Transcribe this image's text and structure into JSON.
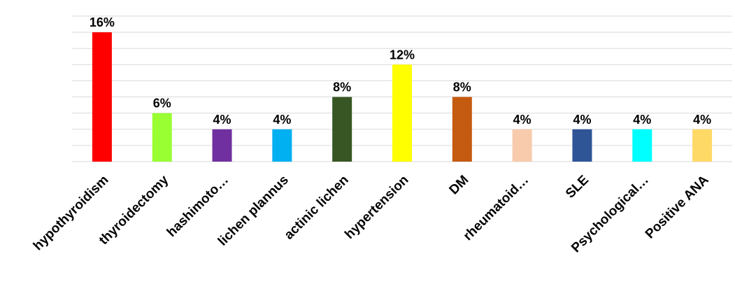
{
  "chart_data": {
    "type": "bar",
    "title": "",
    "xlabel": "",
    "ylabel": "",
    "ylim": [
      0,
      18
    ],
    "grid": true,
    "legend": "none",
    "categories": [
      "hypothyroidism",
      "thyroidectomy",
      "hashimoto…",
      "lichen plannus",
      "actinic lichen",
      "hypertension",
      "DM",
      "rheumatoid…",
      "SLE",
      "Psychological…",
      "Positive ANA"
    ],
    "values": [
      16,
      6,
      4,
      4,
      8,
      12,
      8,
      4,
      4,
      4,
      4
    ],
    "data_labels": [
      "16%",
      "6%",
      "4%",
      "4%",
      "8%",
      "12%",
      "8%",
      "4%",
      "4%",
      "4%",
      "4%"
    ],
    "colors": [
      "#ff0000",
      "#99ff33",
      "#7030a0",
      "#00b0f0",
      "#375623",
      "#ffff00",
      "#c55a11",
      "#f8cbad",
      "#2f5597",
      "#00ffff",
      "#ffd966"
    ]
  }
}
